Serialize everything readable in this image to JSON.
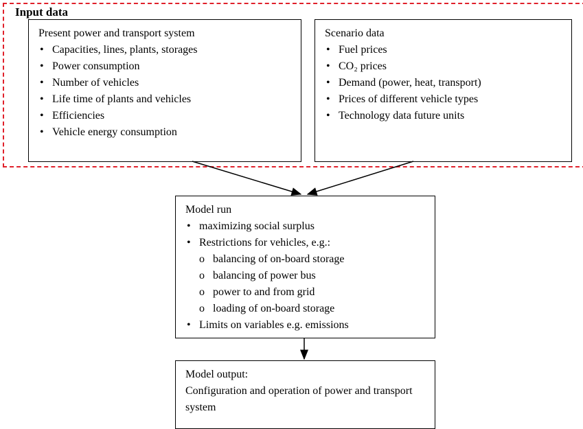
{
  "input_data": {
    "title": "Input data",
    "present_system": {
      "heading": "Present power and transport system",
      "items": [
        "Capacities, lines, plants, storages",
        "Power consumption",
        "Number of vehicles",
        "Life time of plants and vehicles",
        "Efficiencies",
        "Vehicle energy consumption"
      ]
    },
    "scenario_data": {
      "heading": "Scenario data",
      "items": [
        "Fuel prices",
        "CO₂ prices",
        "Demand (power, heat, transport)",
        "Prices of different vehicle types",
        "Technology data future units"
      ]
    }
  },
  "model_run": {
    "heading": "Model run",
    "items": [
      "maximizing social surplus",
      "Restrictions for vehicles, e.g.:",
      "Limits on variables e.g. emissions"
    ],
    "sub_items": [
      "balancing of on-board storage",
      "balancing of power bus",
      "power to and from grid",
      "loading of on-board storage"
    ]
  },
  "model_output": {
    "heading": "Model output:",
    "text": "Configuration and operation of power and transport system"
  }
}
